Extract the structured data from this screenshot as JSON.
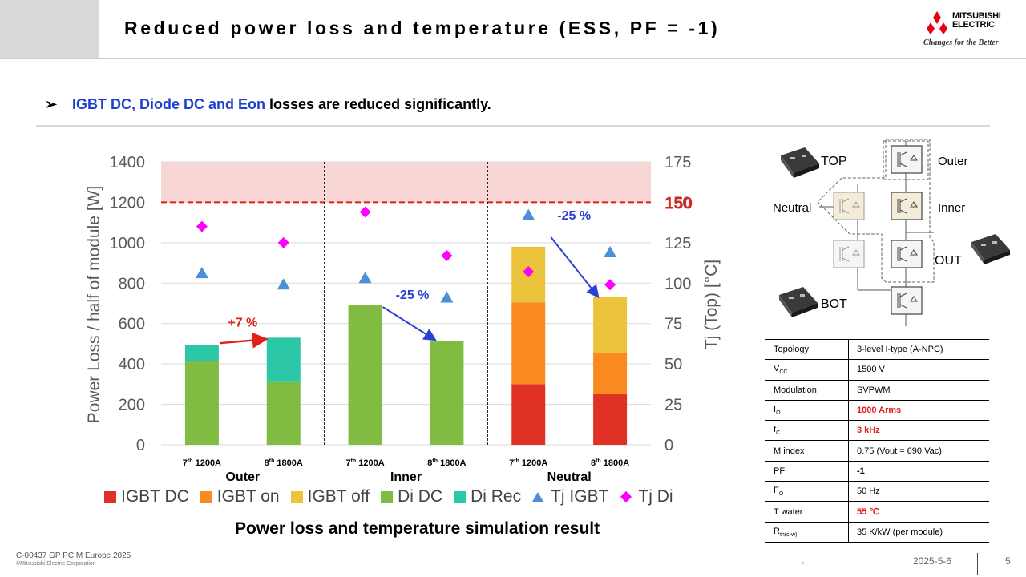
{
  "header": {
    "title": "Reduced power loss and temperature (ESS, PF = -1)"
  },
  "logo": {
    "line1": "MITSUBISHI",
    "line2": "ELECTRIC",
    "slogan": "Changes for the Better"
  },
  "bullet": {
    "marker": "➢",
    "highlight": "IGBT DC, Diode DC and Eon",
    "rest": " losses are reduced significantly."
  },
  "chart_data": {
    "type": "bar",
    "title": "Power loss and temperature simulation result",
    "ylabel": "Power Loss / half of module [W]",
    "y2label": "Tj (Top) [°C]",
    "ylim": [
      0,
      1400
    ],
    "y2lim": [
      0,
      175
    ],
    "yticks": [
      "0",
      "200",
      "400",
      "600",
      "800",
      "1000",
      "1200",
      "1400"
    ],
    "y2ticks": [
      "0",
      "25",
      "50",
      "75",
      "100",
      "125",
      "150",
      "175"
    ],
    "limit_label": "150",
    "limit_value": 150,
    "groups": [
      "Outer",
      "Inner",
      "Neutral"
    ],
    "categories": [
      {
        "sup": "th",
        "pre": "7",
        "post": " 1200A"
      },
      {
        "sup": "th",
        "pre": "8",
        "post": " 1800A"
      },
      {
        "sup": "th",
        "pre": "7",
        "post": " 1200A"
      },
      {
        "sup": "th",
        "pre": "8",
        "post": " 1800A"
      },
      {
        "sup": "th",
        "pre": "7",
        "post": " 1200A"
      },
      {
        "sup": "th",
        "pre": "8",
        "post": " 1800A"
      }
    ],
    "series": [
      {
        "name": "IGBT DC",
        "color": "#e03127",
        "values": [
          0,
          0,
          0,
          0,
          300,
          250
        ]
      },
      {
        "name": "IGBT on",
        "color": "#f98a22",
        "values": [
          0,
          0,
          0,
          0,
          405,
          205
        ]
      },
      {
        "name": "IGBT off",
        "color": "#ecc33c",
        "values": [
          0,
          0,
          0,
          0,
          275,
          275
        ]
      },
      {
        "name": "Di DC",
        "color": "#80bb42",
        "values": [
          415,
          310,
          690,
          515,
          0,
          0
        ]
      },
      {
        "name": "Di Rec",
        "color": "#2bc7a7",
        "values": [
          80,
          220,
          0,
          0,
          0,
          0
        ]
      }
    ],
    "temperatures": [
      {
        "name": "Tj IGBT",
        "color": "#4a90d9",
        "values": [
          106,
          99,
          103,
          91,
          142,
          119
        ]
      },
      {
        "name": "Tj Di",
        "color": "#ff00ff",
        "values": [
          135,
          125,
          144,
          117,
          107,
          99
        ]
      }
    ],
    "annotations": [
      {
        "text": "+7 %",
        "color": "#e0201a"
      },
      {
        "text": "-25 %",
        "color": "#2b3fd4"
      },
      {
        "text": "-25 %",
        "color": "#2b3fd4"
      }
    ]
  },
  "schematic": {
    "top": "TOP",
    "bot": "BOT",
    "outer": "Outer",
    "inner": "Inner",
    "neutral": "Neutral",
    "out": "OUT"
  },
  "spec_table": [
    {
      "k": "Topology",
      "ksub": "",
      "v": "3-level I-type (A-NPC)",
      "style": ""
    },
    {
      "k": "V",
      "ksub": "CC",
      "v": "1500 V",
      "style": ""
    },
    {
      "k": "Modulation",
      "ksub": "",
      "v": "SVPWM",
      "style": ""
    },
    {
      "k": "I",
      "ksub": "O",
      "v": "1000 Arms",
      "style": "red"
    },
    {
      "k": "f",
      "ksub": "C",
      "v": "3 kHz",
      "style": "red"
    },
    {
      "k": "M index",
      "ksub": "",
      "v": "0.75 (Vout = 690 Vac)",
      "style": ""
    },
    {
      "k": "PF",
      "ksub": "",
      "v": "-1",
      "style": "bold"
    },
    {
      "k": "F",
      "ksub": "O",
      "v": "50 Hz",
      "style": ""
    },
    {
      "k": "T water",
      "ksub": "",
      "v": "55 ℃",
      "style": "red"
    },
    {
      "k": "R",
      "ksub": "th(c-w)",
      "v": "35 K/kW (per module)",
      "style": ""
    }
  ],
  "footer": {
    "doc": "C-00437 GP PCIM Europe 2025",
    "copyright": "©Mitsubishi Electric Corporation",
    "date": "2025-5-6",
    "page": "5",
    "dot": "‹"
  },
  "colors": {
    "accent_blue": "#1f3fd0",
    "limit_red": "#e0201a",
    "limit_band": "#f9d6d6"
  }
}
